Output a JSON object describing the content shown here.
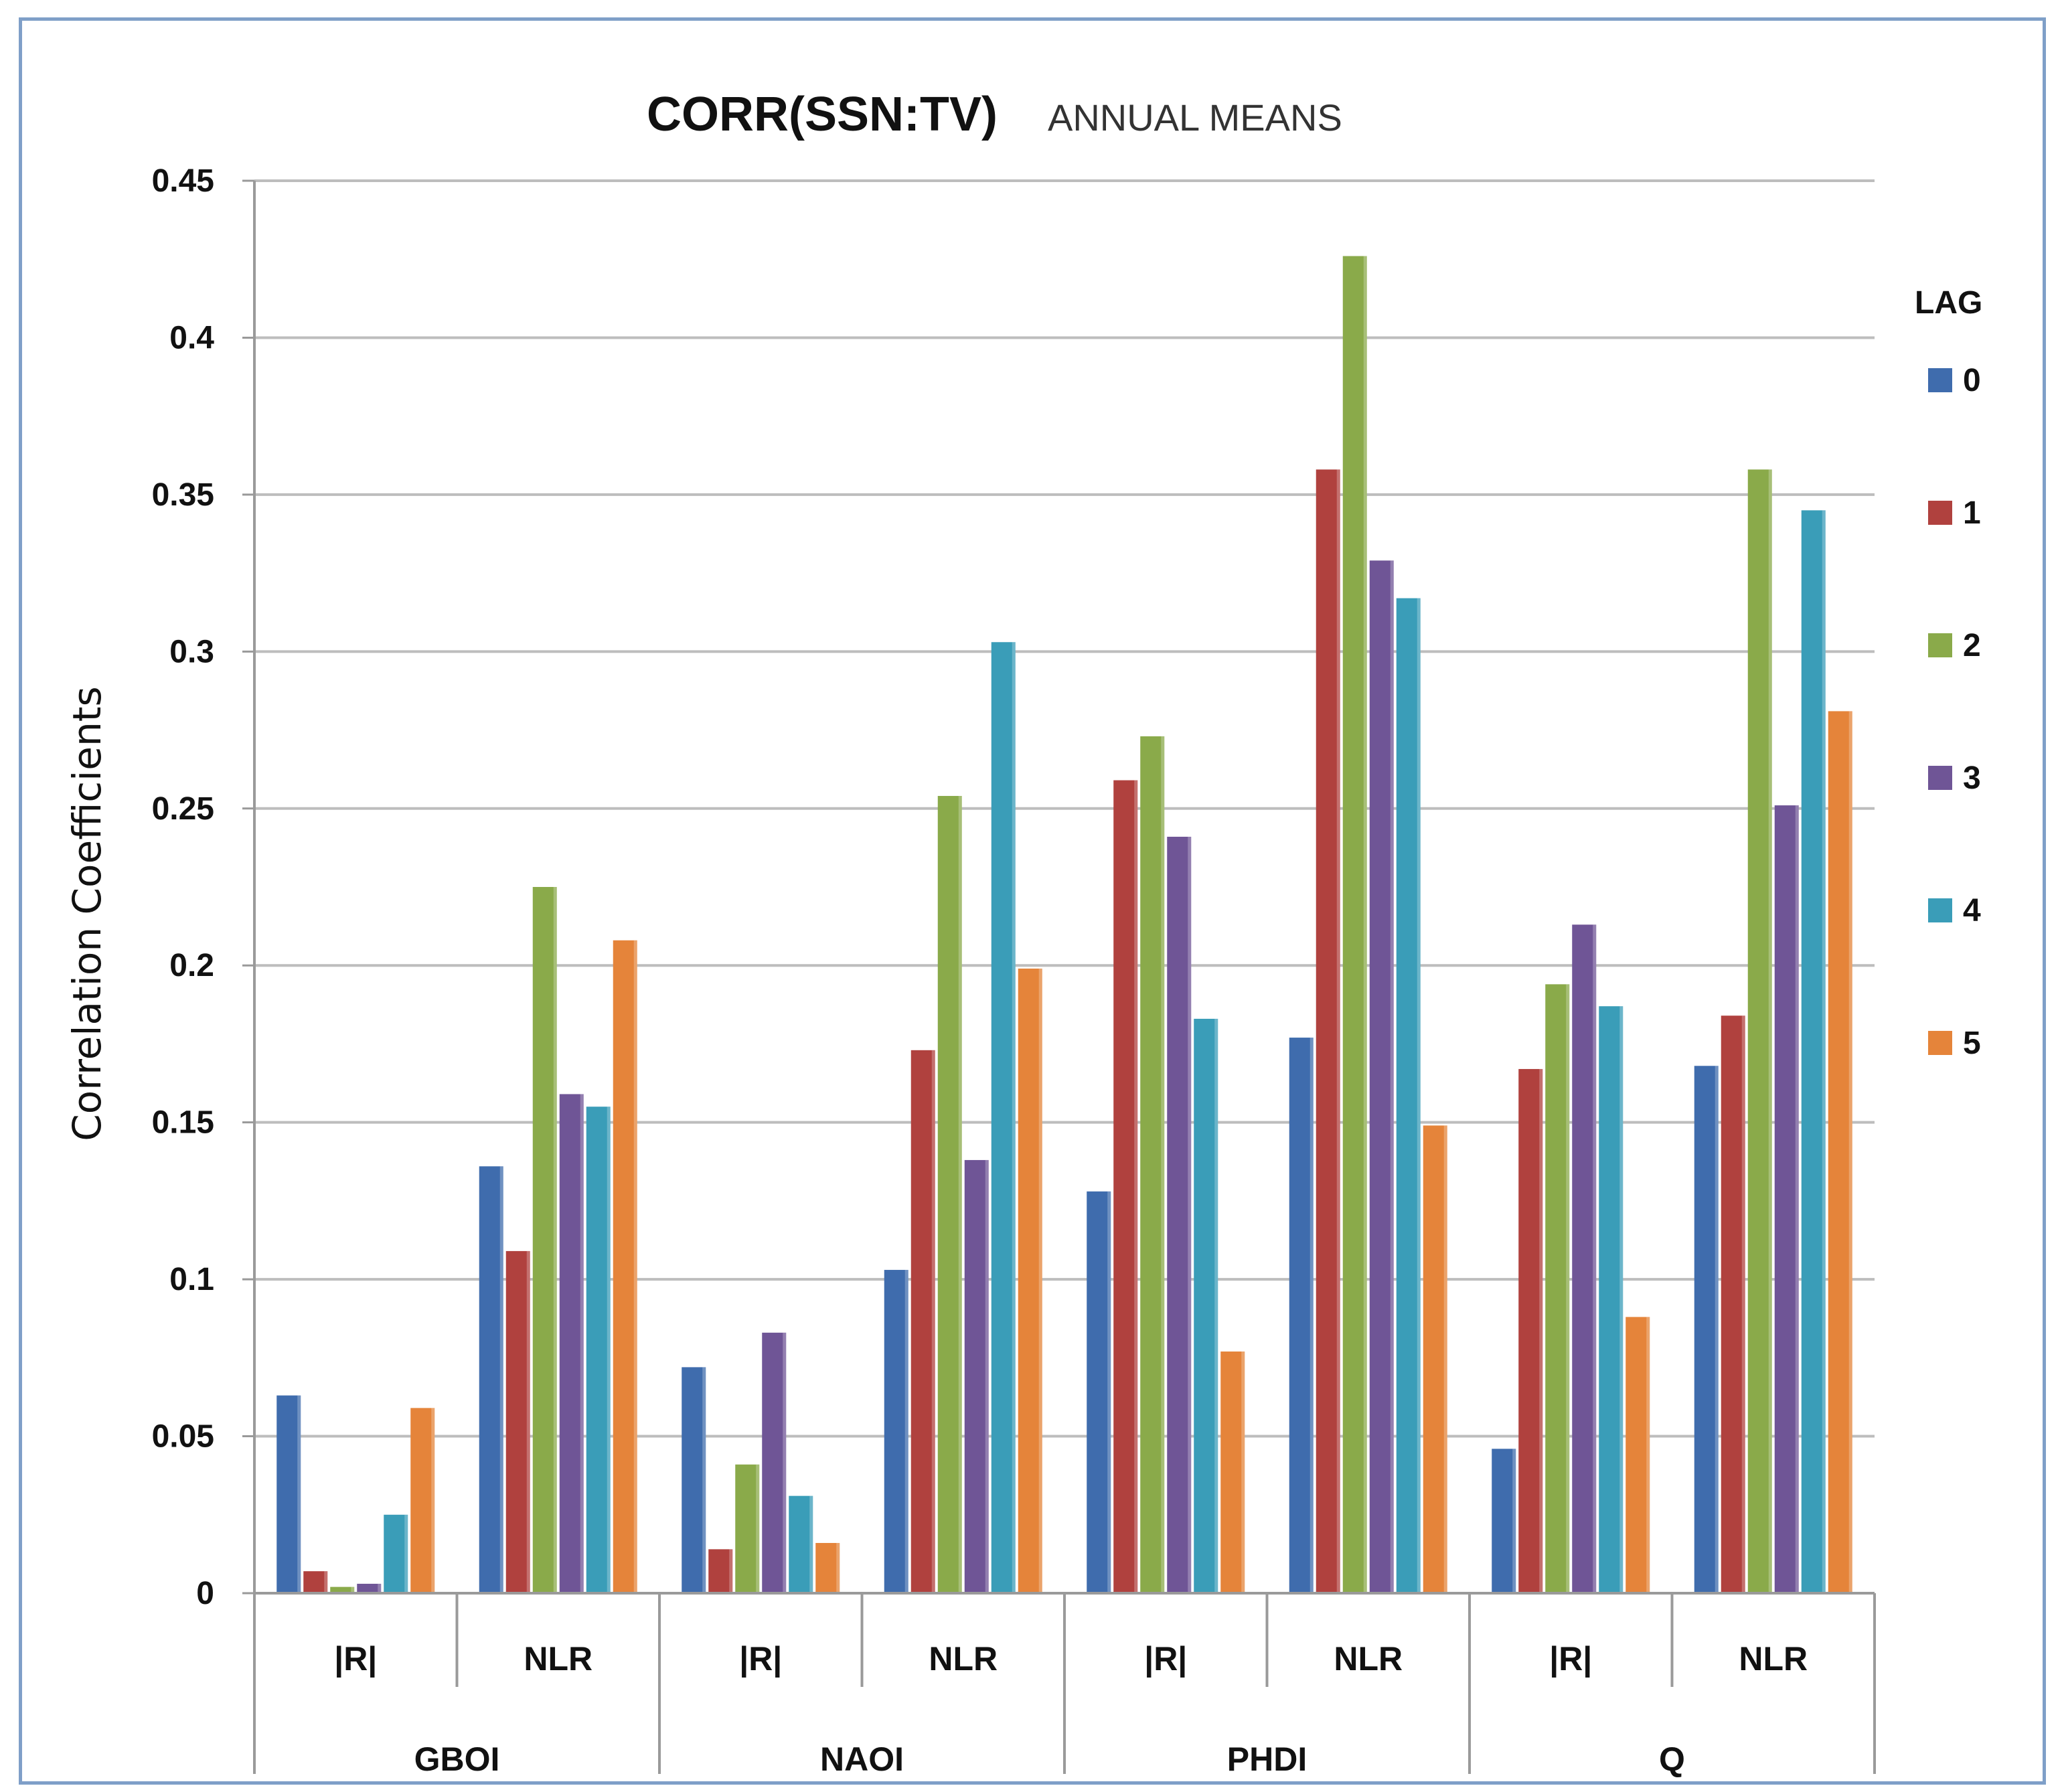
{
  "chart_data": {
    "type": "bar",
    "title": "CORR(SSN:TV)",
    "subtitle": "ANNUAL MEANS",
    "xlabel": "",
    "ylabel": "Correlation Coefficients",
    "ylim": [
      0,
      0.45
    ],
    "yticks": [
      "0",
      "0.05",
      "0.1",
      "0.15",
      "0.2",
      "0.25",
      "0.3",
      "0.35",
      "0.4",
      "0.45"
    ],
    "grid": true,
    "legend_title": "LAG",
    "legend_position": "right",
    "groups": [
      "GBOI",
      "NAOI",
      "PHDI",
      "Q"
    ],
    "categories": [
      "|R|",
      "NLR",
      "|R|",
      "NLR",
      "|R|",
      "NLR",
      "|R|",
      "NLR"
    ],
    "series": [
      {
        "name": "0",
        "color": "#3f6cad",
        "values": [
          0.063,
          0.136,
          0.072,
          0.103,
          0.128,
          0.177,
          0.046,
          0.168
        ]
      },
      {
        "name": "1",
        "color": "#b0413e",
        "values": [
          0.007,
          0.109,
          0.014,
          0.173,
          0.259,
          0.358,
          0.167,
          0.184
        ]
      },
      {
        "name": "2",
        "color": "#8aaa4a",
        "values": [
          0.002,
          0.225,
          0.041,
          0.254,
          0.273,
          0.426,
          0.194,
          0.358
        ]
      },
      {
        "name": "3",
        "color": "#6f5596",
        "values": [
          0.003,
          0.159,
          0.083,
          0.138,
          0.241,
          0.329,
          0.213,
          0.251
        ]
      },
      {
        "name": "4",
        "color": "#3a9db8",
        "values": [
          0.025,
          0.155,
          0.031,
          0.303,
          0.183,
          0.317,
          0.187,
          0.345
        ]
      },
      {
        "name": "5",
        "color": "#e5843a",
        "values": [
          0.059,
          0.208,
          0.016,
          0.199,
          0.077,
          0.149,
          0.088,
          0.281
        ]
      }
    ]
  }
}
